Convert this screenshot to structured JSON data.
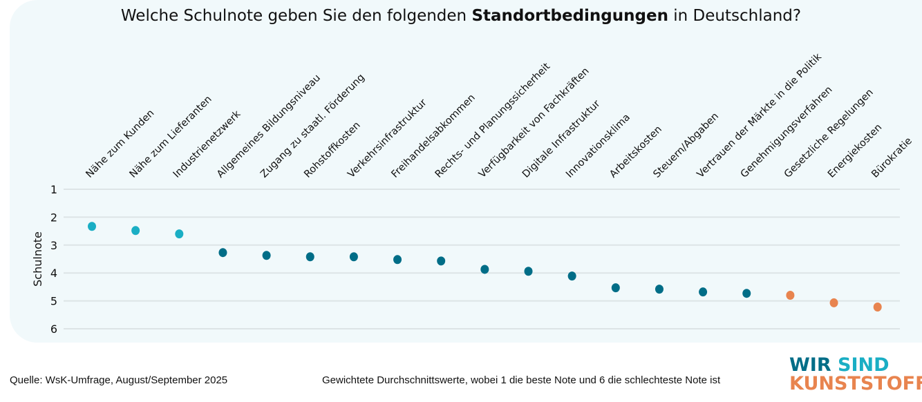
{
  "chart_data": {
    "type": "scatter",
    "title_pre": "Welche Schulnote geben Sie den folgenden ",
    "title_bold": "Standortbedingungen",
    "title_post": " in Deutschland?",
    "ylabel": "Schulnote",
    "ylim": [
      1,
      6
    ],
    "y_inverted": true,
    "yticks": [
      "1",
      "2",
      "3",
      "4",
      "5",
      "6"
    ],
    "grid": true,
    "categories": [
      "Nähe zum Kunden",
      "Nähe zum Lieferanten",
      "Industrienetzwerk",
      "Allgemeines Bildungsniveau",
      "Zugang zu staatl. Förderung",
      "Rohstoffkosten",
      "Verkehrsinfrastruktur",
      "Freihandelsabkommen",
      "Rechts- und Planungssicherheit",
      "Verfügbarkeit  von Fachkräften",
      "Digitale Infrastruktur",
      "Innovationsklima",
      "Arbeitskosten",
      "Steuern/Abgaben",
      "Vertrauen der Märkte in die Politik",
      "Genehmigungsverfahren",
      "Gesetzliche Regelungen",
      "Energiekosten",
      "Bürokratie"
    ],
    "values": [
      2.33,
      2.48,
      2.6,
      3.27,
      3.37,
      3.42,
      3.42,
      3.52,
      3.57,
      3.87,
      3.94,
      4.11,
      4.53,
      4.58,
      4.68,
      4.73,
      4.8,
      5.07,
      5.22
    ],
    "point_groups": [
      "top",
      "top",
      "top",
      "mid",
      "mid",
      "mid",
      "mid",
      "mid",
      "mid",
      "mid",
      "mid",
      "mid",
      "mid",
      "mid",
      "mid",
      "mid",
      "bottom",
      "bottom",
      "bottom"
    ],
    "colors": {
      "top": "#1aaec4",
      "mid": "#006d87",
      "bottom": "#e8844f",
      "grid": "#dde4e6",
      "background": "#f1f9fb"
    }
  },
  "footer": {
    "source": "Quelle: WsK-Umfrage, August/September 2025",
    "note": "Gewichtete Durchschnittswerte, wobei 1 die beste Note und 6 die schlechteste Note ist"
  },
  "logo": {
    "line1a": "WIR",
    "line1b": "SIND",
    "line2": "KUNSTSTOFF"
  }
}
